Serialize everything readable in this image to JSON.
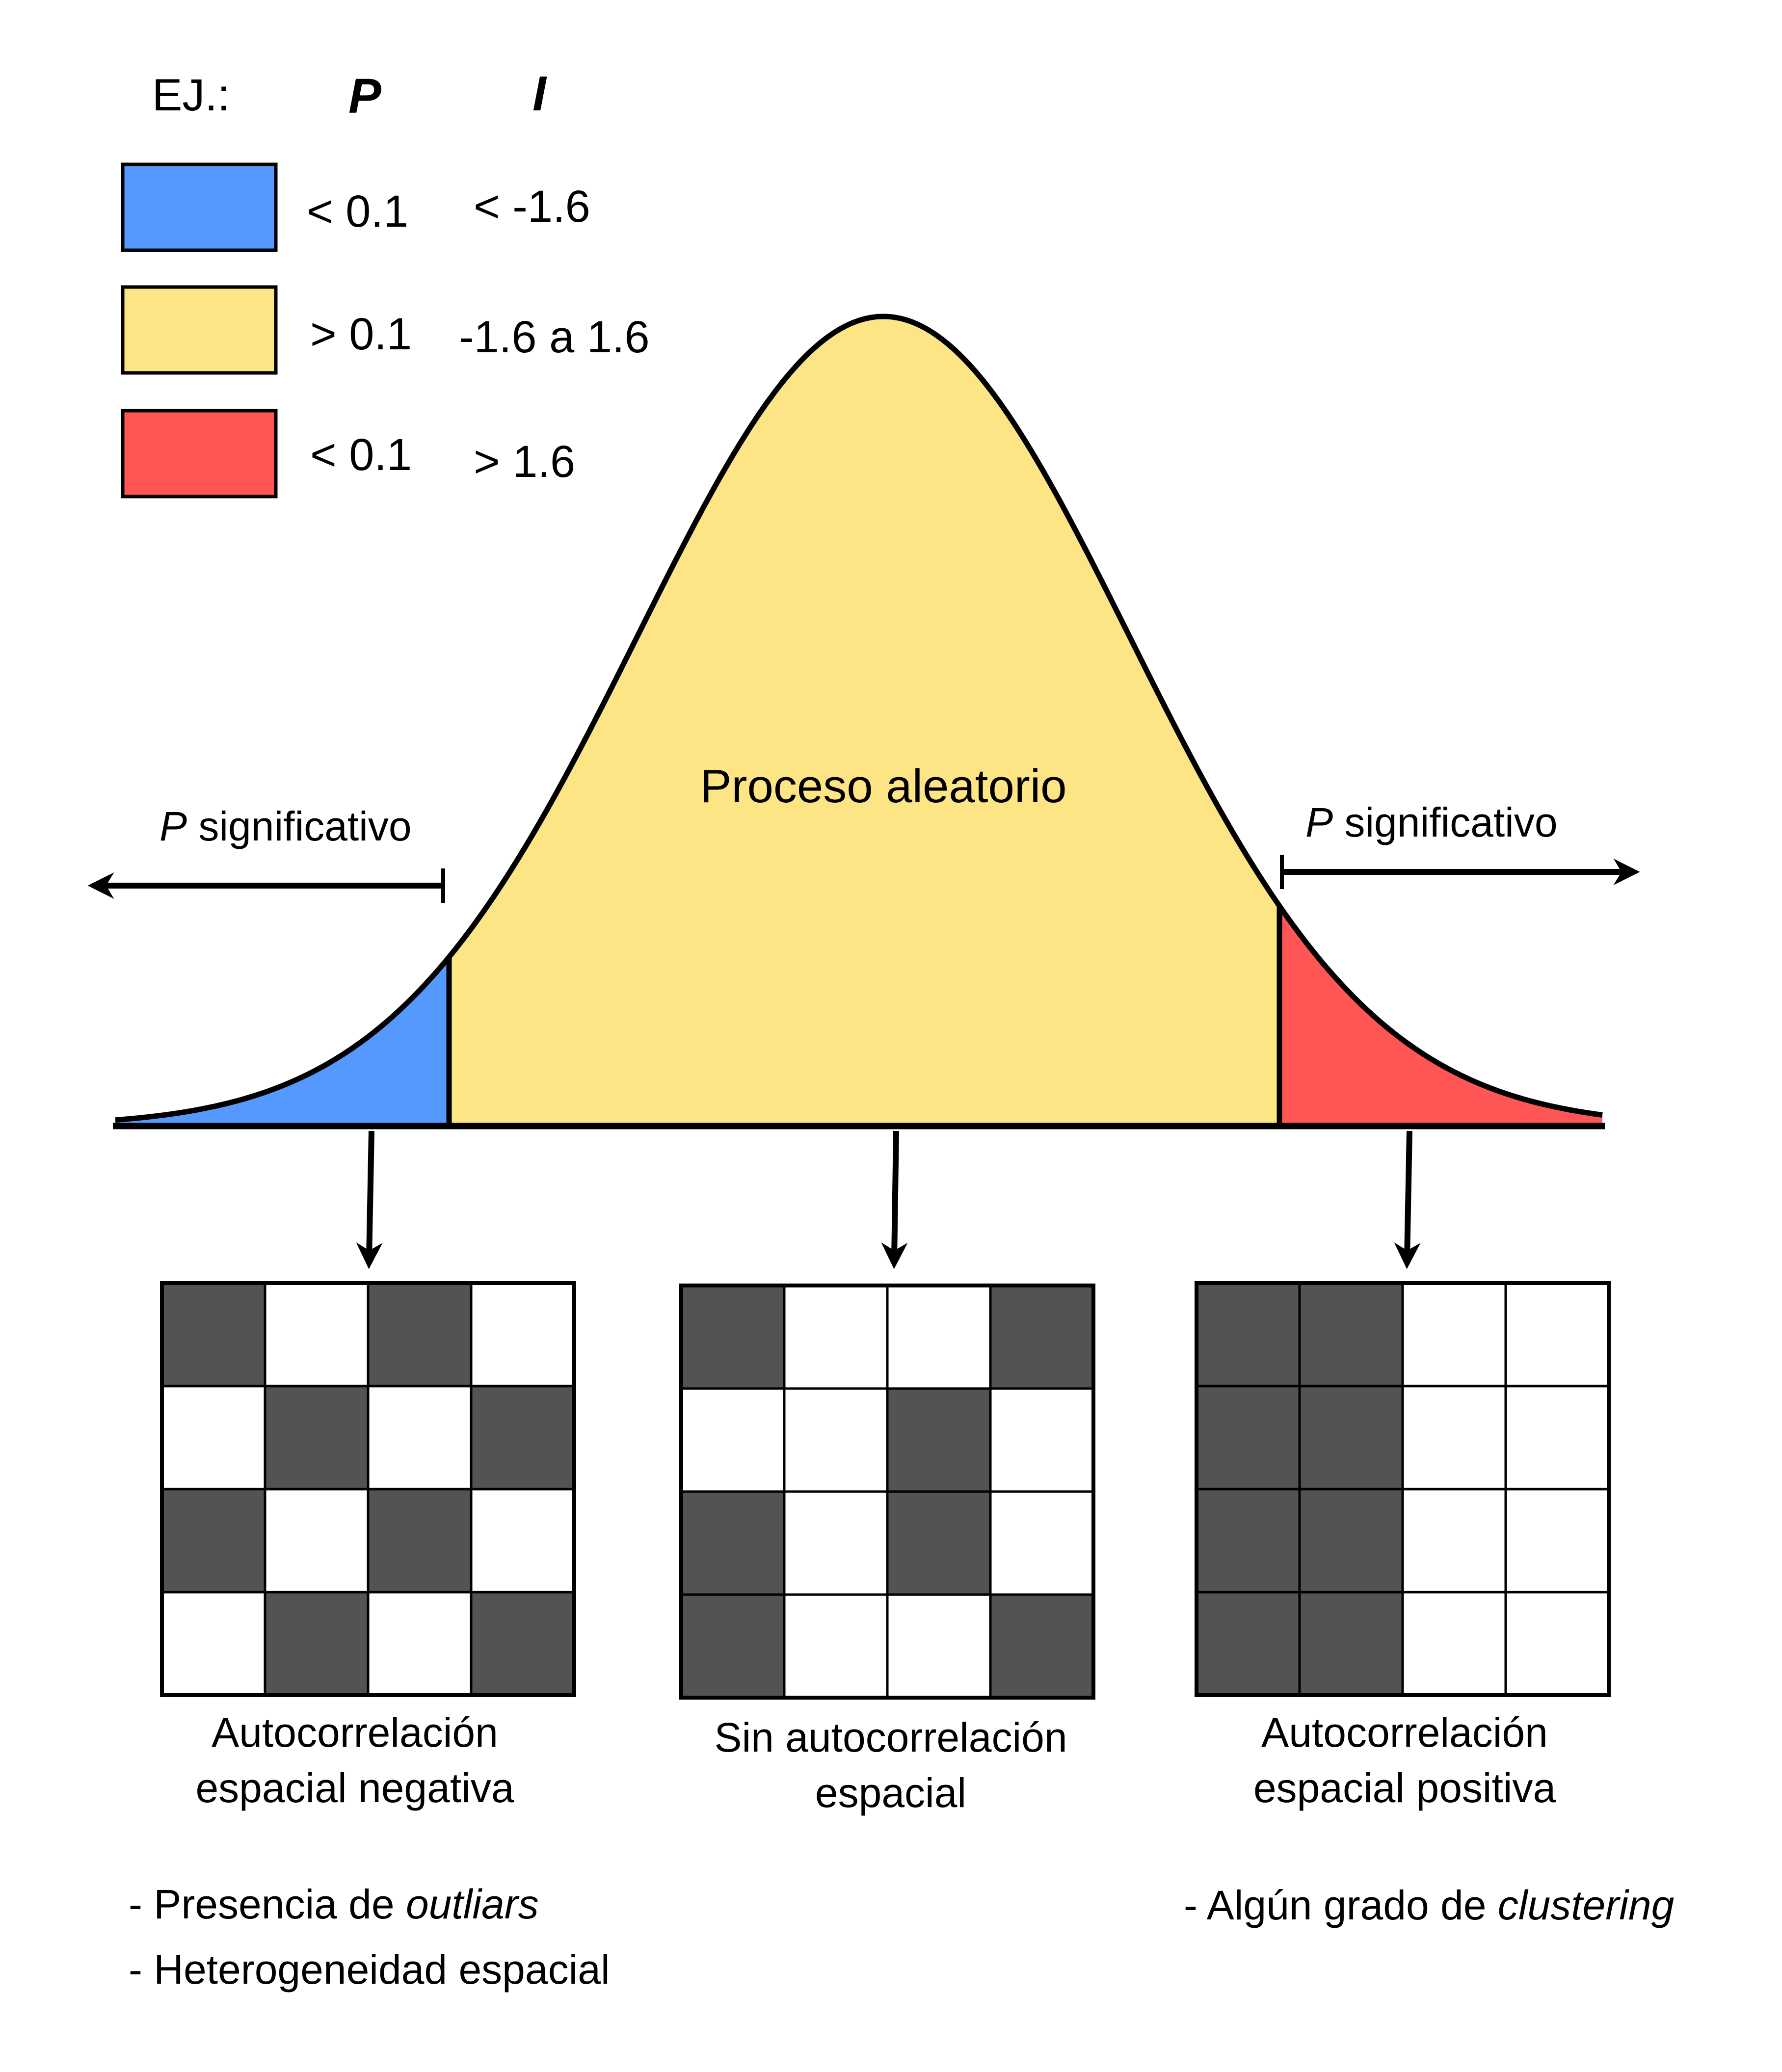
{
  "legend": {
    "prefix": "EJ.:",
    "header_p": "P",
    "header_i": "I",
    "rows": [
      {
        "color": "#5599ff",
        "p": "< 0.1",
        "i": "< -1.6"
      },
      {
        "color": "#fde484",
        "p": "> 0.1",
        "i": "-1.6 a 1.6"
      },
      {
        "color": "#ff5555",
        "p": "< 0.1",
        "i": "> 1.6"
      }
    ]
  },
  "curve": {
    "center_label": "Proceso aleatorio",
    "left_label_italic": "P",
    "left_label_rest": " significativo",
    "right_label_italic": "P",
    "right_label_rest": " significativo",
    "colors": {
      "left_tail": "#5599ff",
      "center": "#fde484",
      "right_tail": "#ff5555"
    }
  },
  "grids": [
    {
      "id": "negative",
      "caption_line1": "Autocorrelación",
      "caption_line2": "espacial negativa",
      "cells": [
        [
          1,
          0,
          1,
          0
        ],
        [
          0,
          1,
          0,
          1
        ],
        [
          1,
          0,
          1,
          0
        ],
        [
          0,
          1,
          0,
          1
        ]
      ]
    },
    {
      "id": "none",
      "caption_line1": "Sin autocorrelación",
      "caption_line2": "espacial",
      "cells": [
        [
          1,
          0,
          0,
          1
        ],
        [
          0,
          0,
          1,
          0
        ],
        [
          1,
          0,
          1,
          0
        ],
        [
          1,
          0,
          0,
          1
        ]
      ]
    },
    {
      "id": "positive",
      "caption_line1": "Autocorrelación",
      "caption_line2": "espacial positiva",
      "cells": [
        [
          1,
          1,
          0,
          0
        ],
        [
          1,
          1,
          0,
          0
        ],
        [
          1,
          1,
          0,
          0
        ],
        [
          1,
          1,
          0,
          0
        ]
      ]
    }
  ],
  "grid_colors": {
    "dark": "#535353",
    "light": "#ffffff"
  },
  "notes": {
    "left": [
      {
        "plain": "- Presencia de ",
        "italic": "outliars"
      },
      {
        "plain": "- Heterogeneidad espacial",
        "italic": ""
      }
    ],
    "right": [
      {
        "plain": "- Algún grado de ",
        "italic": "clustering"
      }
    ]
  }
}
